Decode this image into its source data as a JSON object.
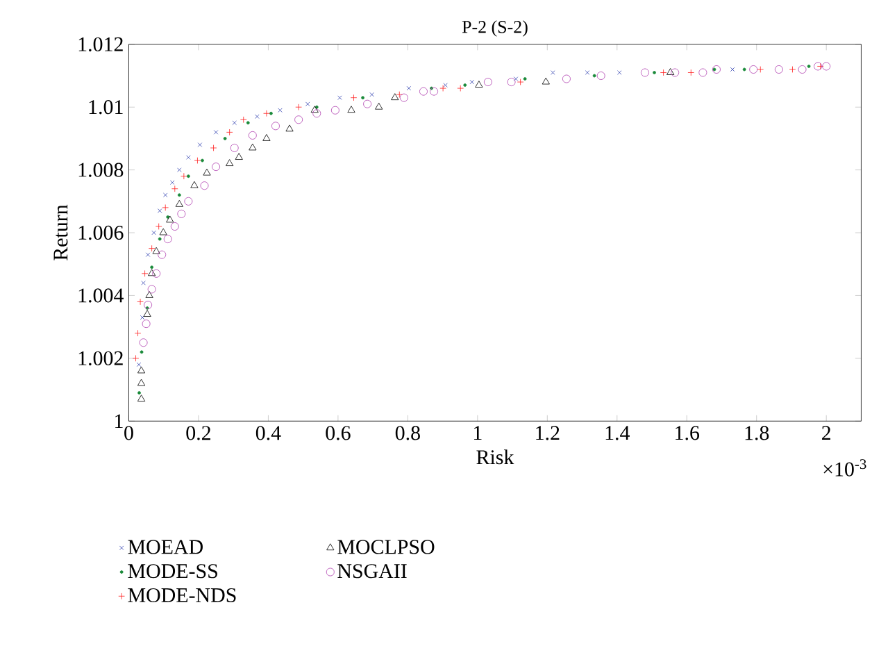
{
  "chart_data": {
    "type": "scatter",
    "title": "P-2 (S-2)",
    "xlabel": "Risk",
    "ylabel": "Return",
    "annotations": [
      "×10$^{-3}$"
    ],
    "xlim": [
      0,
      2.1
    ],
    "xticks": [
      0,
      0.2,
      0.4,
      0.6,
      0.8,
      1,
      1.2,
      1.4,
      1.6,
      1.8,
      2
    ],
    "ylim": [
      1,
      1.012
    ],
    "yticks": [
      1,
      1.002,
      1.004,
      1.006,
      1.008,
      1.01,
      1.012
    ],
    "legend": "bottom",
    "series": [
      {
        "name": "MOEAD",
        "color": "#3040b0",
        "marker": "cross",
        "x": [
          0.029,
          0.039,
          0.042,
          0.055,
          0.072,
          0.089,
          0.105,
          0.125,
          0.145,
          0.171,
          0.204,
          0.25,
          0.303,
          0.368,
          0.434,
          0.513,
          0.605,
          0.697,
          0.803,
          0.908,
          0.984,
          1.11,
          1.216,
          1.315,
          1.407,
          1.731
        ],
        "values": [
          1.0018,
          1.0033,
          1.0044,
          1.0053,
          1.006,
          1.0067,
          1.0072,
          1.0076,
          1.008,
          1.0084,
          1.0088,
          1.0092,
          1.0095,
          1.0097,
          1.0099,
          1.0101,
          1.0103,
          1.0104,
          1.0106,
          1.0107,
          1.0108,
          1.0109,
          1.0111,
          1.0111,
          1.0111,
          1.0112
        ]
      },
      {
        "name": "MODE-SS",
        "color": "#1a8a3a",
        "marker": "point",
        "x": [
          0.03,
          0.037,
          0.053,
          0.066,
          0.089,
          0.112,
          0.145,
          0.171,
          0.211,
          0.276,
          0.342,
          0.408,
          0.539,
          0.671,
          0.868,
          0.964,
          1.136,
          1.335,
          1.507,
          1.679,
          1.765,
          1.95
        ],
        "values": [
          1.0009,
          1.0022,
          1.0036,
          1.0049,
          1.0058,
          1.0065,
          1.0072,
          1.0078,
          1.0083,
          1.009,
          1.0095,
          1.0098,
          1.01,
          1.0103,
          1.0106,
          1.0107,
          1.0109,
          1.011,
          1.0111,
          1.0112,
          1.0112,
          1.0113
        ]
      },
      {
        "name": "MODE-NDS",
        "color": "#ff2020",
        "marker": "plus",
        "x": [
          0.02,
          0.026,
          0.033,
          0.046,
          0.066,
          0.086,
          0.105,
          0.132,
          0.158,
          0.197,
          0.243,
          0.289,
          0.329,
          0.395,
          0.487,
          0.645,
          0.776,
          0.901,
          0.951,
          1.123,
          1.533,
          1.612,
          1.811,
          1.903,
          1.983
        ],
        "values": [
          1.002,
          1.0028,
          1.0038,
          1.0047,
          1.0055,
          1.0062,
          1.0068,
          1.0074,
          1.0078,
          1.0083,
          1.0087,
          1.0092,
          1.0096,
          1.0098,
          1.01,
          1.0103,
          1.0104,
          1.0106,
          1.0106,
          1.0108,
          1.0111,
          1.0111,
          1.0112,
          1.0112,
          1.0113
        ]
      },
      {
        "name": "MOCLPSO",
        "color": "#000000",
        "marker": "triangle",
        "x": [
          0.036,
          0.036,
          0.036,
          0.053,
          0.059,
          0.066,
          0.079,
          0.099,
          0.118,
          0.145,
          0.188,
          0.224,
          0.289,
          0.316,
          0.355,
          0.395,
          0.461,
          0.533,
          0.638,
          0.717,
          0.763,
          1.004,
          1.196,
          1.553
        ],
        "values": [
          1.0007,
          1.0012,
          1.0016,
          1.0034,
          1.004,
          1.0047,
          1.0054,
          1.006,
          1.0064,
          1.0069,
          1.0075,
          1.0079,
          1.0082,
          1.0084,
          1.0087,
          1.009,
          1.0093,
          1.0099,
          1.0099,
          1.01,
          1.0103,
          1.0107,
          1.0108,
          1.0111
        ]
      },
      {
        "name": "NSGAII",
        "color": "#b040b0",
        "marker": "circle",
        "x": [
          0.042,
          0.05,
          0.055,
          0.066,
          0.079,
          0.095,
          0.112,
          0.132,
          0.151,
          0.171,
          0.217,
          0.25,
          0.303,
          0.355,
          0.421,
          0.487,
          0.539,
          0.592,
          0.684,
          0.789,
          0.845,
          0.875,
          1.03,
          1.097,
          1.255,
          1.354,
          1.48,
          1.566,
          1.646,
          1.685,
          1.791,
          1.864,
          1.931,
          1.976,
          2.0
        ],
        "values": [
          1.0025,
          1.0031,
          1.0037,
          1.0042,
          1.0047,
          1.0053,
          1.0058,
          1.0062,
          1.0066,
          1.007,
          1.0075,
          1.0081,
          1.0087,
          1.0091,
          1.0094,
          1.0096,
          1.0098,
          1.0099,
          1.0101,
          1.0103,
          1.0105,
          1.0105,
          1.0108,
          1.0108,
          1.0109,
          1.011,
          1.0111,
          1.0111,
          1.0111,
          1.0112,
          1.0112,
          1.0112,
          1.0112,
          1.0113,
          1.0113
        ]
      }
    ]
  }
}
